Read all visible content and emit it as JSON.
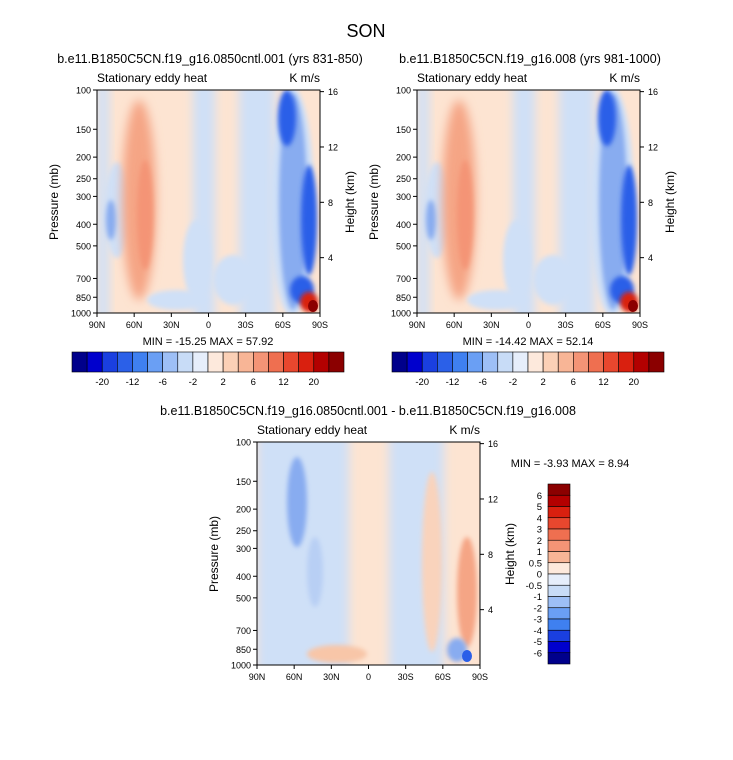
{
  "page": {
    "title": "SON"
  },
  "chart_data": [
    {
      "type": "heatmap",
      "title": "b.e11.B1850C5CN.f19_g16.0850cntl.001 (yrs 831-850)",
      "left_label": "Stationary eddy heat",
      "right_label": "K m/s",
      "ylabel": "Pressure (mb)",
      "y2label": "Height (km)",
      "x_ticks": [
        "90N",
        "60N",
        "30N",
        "0",
        "30S",
        "60S",
        "90S"
      ],
      "x_values": [
        90,
        60,
        30,
        0,
        -30,
        -60,
        -90
      ],
      "y_ticks": [
        "100",
        "150",
        "200",
        "250",
        "300",
        "400",
        "500",
        "700",
        "850",
        "1000"
      ],
      "y_values": [
        100,
        150,
        200,
        250,
        300,
        400,
        500,
        700,
        850,
        1000
      ],
      "y2_ticks": [
        "16",
        "12",
        "8",
        "4"
      ],
      "y2_values": [
        16,
        12,
        8,
        4
      ],
      "ylim": [
        1000,
        100
      ],
      "stats": "MIN = -15.25  MAX = 57.92",
      "min": -15.25,
      "max": 57.92,
      "colorbar_labels": [
        "-20",
        "-12",
        "-6",
        "-2",
        "2",
        "6",
        "12",
        "20"
      ],
      "colorbar_levels": [
        -20,
        -16,
        -12,
        -8,
        -6,
        -4,
        -2,
        -1,
        1,
        2,
        4,
        6,
        8,
        12,
        16,
        20
      ],
      "features": [
        {
          "lat": 72,
          "p": 400,
          "value": -4
        },
        {
          "lat": 57,
          "p": 280,
          "value": 6
        },
        {
          "lat": 22,
          "p": 500,
          "value": -1
        },
        {
          "lat": -72,
          "p": 130,
          "value": -12
        },
        {
          "lat": -80,
          "p": 500,
          "value": -10
        },
        {
          "lat": -85,
          "p": 980,
          "value": 20
        }
      ]
    },
    {
      "type": "heatmap",
      "title": "b.e11.B1850C5CN.f19_g16.008 (yrs 981-1000)",
      "left_label": "Stationary eddy heat",
      "right_label": "K m/s",
      "ylabel": "Pressure (mb)",
      "y2label": "Height (km)",
      "x_ticks": [
        "90N",
        "60N",
        "30N",
        "0",
        "30S",
        "60S",
        "90S"
      ],
      "x_values": [
        90,
        60,
        30,
        0,
        -30,
        -60,
        -90
      ],
      "y_ticks": [
        "100",
        "150",
        "200",
        "250",
        "300",
        "400",
        "500",
        "700",
        "850",
        "1000"
      ],
      "y_values": [
        100,
        150,
        200,
        250,
        300,
        400,
        500,
        700,
        850,
        1000
      ],
      "y2_ticks": [
        "16",
        "12",
        "8",
        "4"
      ],
      "y2_values": [
        16,
        12,
        8,
        4
      ],
      "ylim": [
        1000,
        100
      ],
      "stats": "MIN = -14.42  MAX =  52.14",
      "min": -14.42,
      "max": 52.14,
      "colorbar_labels": [
        "-20",
        "-12",
        "-6",
        "-2",
        "2",
        "6",
        "12",
        "20"
      ],
      "colorbar_levels": [
        -20,
        -16,
        -12,
        -8,
        -6,
        -4,
        -2,
        -1,
        1,
        2,
        4,
        6,
        8,
        12,
        16,
        20
      ],
      "features": [
        {
          "lat": 72,
          "p": 400,
          "value": -4
        },
        {
          "lat": 57,
          "p": 280,
          "value": 6
        },
        {
          "lat": 22,
          "p": 500,
          "value": -1
        },
        {
          "lat": -72,
          "p": 130,
          "value": -12
        },
        {
          "lat": -82,
          "p": 420,
          "value": -12
        },
        {
          "lat": -85,
          "p": 980,
          "value": 16
        }
      ]
    },
    {
      "type": "heatmap",
      "title": "b.e11.B1850C5CN.f19_g16.0850cntl.001 - b.e11.B1850C5CN.f19_g16.008",
      "left_label": "Stationary eddy heat",
      "right_label": "K m/s",
      "ylabel": "Pressure (mb)",
      "y2label": "Height (km)",
      "x_ticks": [
        "90N",
        "60N",
        "30N",
        "0",
        "30S",
        "60S",
        "90S"
      ],
      "x_values": [
        90,
        60,
        30,
        0,
        -30,
        -60,
        -90
      ],
      "y_ticks": [
        "100",
        "150",
        "200",
        "250",
        "300",
        "400",
        "500",
        "700",
        "850",
        "1000"
      ],
      "y_values": [
        100,
        150,
        200,
        250,
        300,
        400,
        500,
        700,
        850,
        1000
      ],
      "y2_ticks": [
        "16",
        "12",
        "8",
        "4"
      ],
      "y2_values": [
        16,
        12,
        8,
        4
      ],
      "ylim": [
        1000,
        100
      ],
      "stats": "MIN =  -3.93  MAX =   8.94",
      "min": -3.93,
      "max": 8.94,
      "colorbar_labels": [
        "6",
        "5",
        "4",
        "3",
        "2",
        "1",
        "0.5",
        "0",
        "-0.5",
        "-1",
        "-2",
        "-3",
        "-4",
        "-5",
        "-6"
      ],
      "colorbar_levels": [
        6,
        5,
        4,
        3,
        2,
        1,
        0.5,
        0,
        -0.5,
        -1,
        -2,
        -3,
        -4,
        -5,
        -6
      ],
      "features": [
        {
          "lat": 57,
          "p": 150,
          "value": -0.5
        },
        {
          "lat": 32,
          "p": 400,
          "value": -0.5
        },
        {
          "lat": -78,
          "p": 400,
          "value": 2
        },
        {
          "lat": -72,
          "p": 950,
          "value": -3
        }
      ]
    }
  ],
  "colors": {
    "scale18": [
      "#00008b",
      "#0000cd",
      "#1a3fe0",
      "#2b60e8",
      "#3f80f0",
      "#6a9ff4",
      "#9dbff6",
      "#c8dcf7",
      "#e6eefb",
      "#fde9dc",
      "#fbd0b6",
      "#f8b596",
      "#f49476",
      "#ef6f50",
      "#e8472e",
      "#d9200f",
      "#b30000",
      "#8b0000"
    ],
    "scale16": [
      "#8b0000",
      "#b30000",
      "#d9200f",
      "#e8472e",
      "#ef6f50",
      "#f49476",
      "#f8b596",
      "#fde9dc",
      "#e6eefb",
      "#c8dcf7",
      "#9dbff6",
      "#6a9ff4",
      "#3f80f0",
      "#1a3fe0",
      "#0000cd",
      "#00008b"
    ],
    "light_blue": "#cfe0f7",
    "light_orange": "#fde4d2",
    "mid_orange": "#f5a585",
    "mid_blue": "#88acf0",
    "deep_blue": "#2b5fe8",
    "red": "#d9200f"
  }
}
